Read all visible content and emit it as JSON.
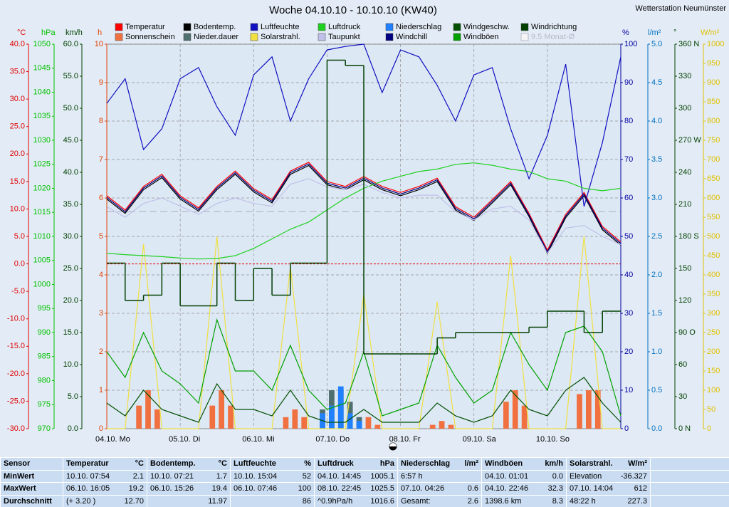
{
  "station": "Wetterstation Neumünster",
  "chart_data": {
    "type": "line",
    "title": "Woche 04.10.10 - 10.10.10 (KW40)",
    "day_labels": [
      "04.10. Mo",
      "05.10. Di",
      "06.10. Mi",
      "07.10. Do",
      "08.10. Fr",
      "09.10. Sa",
      "10.10. So"
    ],
    "axes": [
      {
        "unit": "°C",
        "color": "#e00000",
        "lim": [
          -30,
          40
        ],
        "zero_line": true,
        "ticks": [
          {
            "value": -30,
            "label": "-30.0"
          },
          {
            "value": -25,
            "label": "-25.0"
          },
          {
            "value": -20,
            "label": "-20.0"
          },
          {
            "value": -15,
            "label": "-15.0"
          },
          {
            "value": -10,
            "label": "-10.0"
          },
          {
            "value": -5,
            "label": "-5.0"
          },
          {
            "value": 0,
            "label": "0.0"
          },
          {
            "value": 5,
            "label": "5.0"
          },
          {
            "value": 10,
            "label": "10.0"
          },
          {
            "value": 15,
            "label": "15.0"
          },
          {
            "value": 20,
            "label": "20.0"
          },
          {
            "value": 25,
            "label": "25.0"
          },
          {
            "value": 30,
            "label": "30.0"
          },
          {
            "value": 35,
            "label": "35.0"
          },
          {
            "value": 40,
            "label": "40.0"
          }
        ]
      },
      {
        "unit": "hPa",
        "color": "#00c000",
        "lim": [
          970,
          1050
        ],
        "ticks": [
          970,
          975,
          980,
          985,
          990,
          995,
          1000,
          1005,
          1010,
          1015,
          1020,
          1025,
          1030,
          1035,
          1040,
          1045,
          1050
        ]
      },
      {
        "unit": "km/h",
        "color": "#004000",
        "lim": [
          0,
          60
        ],
        "ticks": [
          {
            "value": 0,
            "label": "0.0"
          },
          {
            "value": 5,
            "label": "5.0"
          },
          {
            "value": 10,
            "label": "10.0"
          },
          {
            "value": 15,
            "label": "15.0"
          },
          {
            "value": 20,
            "label": "20.0"
          },
          {
            "value": 25,
            "label": "25.0"
          },
          {
            "value": 30,
            "label": "30.0"
          },
          {
            "value": 35,
            "label": "35.0"
          },
          {
            "value": 40,
            "label": "40.0"
          },
          {
            "value": 45,
            "label": "45.0"
          },
          {
            "value": 50,
            "label": "50.0"
          },
          {
            "value": 55,
            "label": "55.0"
          },
          {
            "value": 60,
            "label": "60.0"
          }
        ]
      },
      {
        "unit": "h",
        "color": "#e04000",
        "lim": [
          0,
          10
        ],
        "grid": true,
        "ticks": [
          0,
          1,
          2,
          3,
          4,
          5,
          6,
          7,
          8,
          9,
          10
        ]
      },
      {
        "unit": "%",
        "color": "#0000a0",
        "lim": [
          0,
          100
        ],
        "ticks": [
          0,
          10,
          20,
          30,
          40,
          50,
          60,
          70,
          80,
          90,
          100
        ]
      },
      {
        "unit": "l/m²",
        "color": "#0070c0",
        "lim": [
          0,
          5
        ],
        "ticks": [
          {
            "value": 0,
            "label": "0.0"
          },
          0.5,
          {
            "value": 1,
            "label": "1.0"
          },
          1.5,
          {
            "value": 2,
            "label": "2.0"
          },
          2.5,
          {
            "value": 3,
            "label": "3.0"
          },
          3.5,
          {
            "value": 4,
            "label": "4.0"
          },
          4.5,
          {
            "value": 5,
            "label": "5.0"
          }
        ]
      },
      {
        "unit": "°",
        "color": "#004000",
        "lim": [
          0,
          360
        ],
        "ticks": [
          {
            "value": 0,
            "label": "0 N"
          },
          30,
          60,
          {
            "value": 90,
            "label": "90 O"
          },
          120,
          150,
          {
            "value": 180,
            "label": "180 S"
          },
          210,
          240,
          {
            "value": 270,
            "label": "270 W"
          },
          300,
          330,
          {
            "value": 360,
            "label": "360 N"
          }
        ]
      },
      {
        "unit": "W/m²",
        "color": "#e0c000",
        "lim": [
          0,
          1000
        ],
        "ticks": [
          0,
          50,
          100,
          150,
          200,
          250,
          300,
          350,
          400,
          450,
          500,
          550,
          600,
          650,
          700,
          750,
          800,
          850,
          900,
          950,
          1000
        ]
      }
    ],
    "series": [
      {
        "name": "Temperatur",
        "color": "#ff0000",
        "axis": 0,
        "kind": "line",
        "values": [
          12.4,
          9.8,
          14.1,
          16.3,
          12.4,
          10.2,
          14.1,
          16.9,
          13.7,
          11.7,
          16.9,
          18.5,
          15.0,
          14.1,
          15.9,
          14.1,
          13.0,
          14.1,
          15.6,
          10.4,
          8.5,
          11.7,
          15.0,
          9.2,
          2.5,
          9.0,
          13.0,
          6.8,
          4.0
        ]
      },
      {
        "name": "Sonnenschein",
        "color": "#f07040",
        "axis": 3,
        "kind": "bar",
        "values": [
          0,
          0,
          0,
          0.6,
          1.0,
          0.5,
          0,
          0,
          0,
          0,
          0,
          0.6,
          1.0,
          0.6,
          0,
          0,
          0,
          0,
          0,
          0.3,
          0.5,
          0.3,
          0,
          0,
          0,
          0,
          0,
          0.2,
          0.3,
          0.1,
          0,
          0,
          0,
          0,
          0,
          0.1,
          0.2,
          0.1,
          0,
          0,
          0,
          0,
          0,
          0.7,
          1.0,
          0.6,
          0,
          0,
          0,
          0,
          0,
          0.9,
          1.0,
          1.0,
          0,
          0
        ]
      },
      {
        "name": "Bodentemp.",
        "color": "#000000",
        "axis": 0,
        "kind": "line",
        "values": [
          11.8,
          9.2,
          13.5,
          15.7,
          11.8,
          9.6,
          13.5,
          16.3,
          13.1,
          11.1,
          16.3,
          17.9,
          14.4,
          13.5,
          15.3,
          13.5,
          12.4,
          13.5,
          15.0,
          9.8,
          7.9,
          11.1,
          14.4,
          8.6,
          1.9,
          8.4,
          12.4,
          6.2,
          3.4
        ]
      },
      {
        "name": "Nieder.dauer",
        "color": "#507070",
        "axis": 3,
        "kind": "bar",
        "values": [
          0,
          0,
          0,
          0,
          0,
          0,
          0,
          0,
          0,
          0,
          0,
          0,
          0,
          0,
          0,
          0,
          0,
          0,
          0,
          0,
          0,
          0,
          0,
          0.5,
          1.0,
          1.0,
          0.7,
          0.3,
          0,
          0,
          0,
          0,
          0,
          0,
          0,
          0,
          0,
          0,
          0,
          0,
          0,
          0,
          0,
          0,
          0,
          0,
          0,
          0,
          0,
          0,
          0,
          0,
          0,
          0,
          0,
          0
        ]
      },
      {
        "name": "Luftfeuchte",
        "color": "#1010c0",
        "axis": 4,
        "kind": "line",
        "values": [
          84.6,
          91,
          72.6,
          78,
          91,
          93.9,
          83.7,
          76.3,
          92,
          96.7,
          80,
          91,
          98.5,
          99.4,
          100,
          87.4,
          98.5,
          96.7,
          89.3,
          80,
          92,
          93.9,
          78,
          65,
          76.3,
          94.8,
          57.8,
          74.4,
          96.7
        ]
      },
      {
        "name": "Solarstrahl.",
        "color": "#f0e040",
        "axis": 7,
        "kind": "line",
        "values": [
          0,
          0,
          480,
          0,
          0,
          0,
          500,
          0,
          0,
          0,
          420,
          0,
          0,
          0,
          350,
          0,
          0,
          0,
          330,
          0,
          0,
          0,
          450,
          0,
          0,
          0,
          500,
          0,
          0
        ]
      },
      {
        "name": "Luftdruck",
        "color": "#20d020",
        "axis": 1,
        "kind": "line",
        "values": [
          1006.5,
          1006.2,
          1006.0,
          1005.8,
          1005.5,
          1005.3,
          1005.4,
          1006.0,
          1007.5,
          1009.5,
          1011.5,
          1013.0,
          1015.5,
          1018.0,
          1020.0,
          1021.5,
          1022.5,
          1023.5,
          1024.0,
          1025.0,
          1025.3,
          1024.8,
          1024.0,
          1023.5,
          1022.0,
          1021.5,
          1020.0,
          1019.5,
          1020.0
        ]
      },
      {
        "name": "Taupunkt",
        "color": "#c0c0e8",
        "axis": 0,
        "kind": "line",
        "values": [
          10.4,
          8.5,
          11.0,
          12.0,
          10.5,
          9.0,
          11.0,
          12.0,
          11.0,
          10.5,
          14.5,
          15.5,
          14.0,
          13.5,
          14.5,
          13.0,
          12.0,
          12.5,
          12.5,
          9.5,
          8.0,
          10.0,
          10.5,
          8.0,
          2.0,
          6.5,
          7.0,
          5.0,
          3.5
        ]
      },
      {
        "name": "Niederschlag",
        "color": "#2080ff",
        "axis": 5,
        "kind": "bar",
        "values": [
          0,
          0,
          0,
          0,
          0,
          0,
          0,
          0,
          0,
          0,
          0,
          0,
          0,
          0,
          0,
          0,
          0,
          0,
          0,
          0,
          0,
          0,
          0,
          0.2,
          0.3,
          0.55,
          0.2,
          0.1,
          0,
          0,
          0,
          0,
          0,
          0,
          0,
          0,
          0,
          0,
          0,
          0,
          0,
          0,
          0,
          0,
          0,
          0,
          0,
          0,
          0,
          0,
          0,
          0,
          0,
          0,
          0,
          0
        ]
      },
      {
        "name": "Windchill",
        "color": "#000080",
        "axis": 0,
        "kind": "line",
        "values": [
          12.1,
          9.5,
          13.8,
          16.0,
          12.1,
          9.9,
          13.8,
          16.6,
          13.4,
          11.4,
          16.6,
          18.2,
          14.7,
          13.8,
          15.6,
          13.8,
          12.7,
          13.8,
          15.3,
          10.1,
          8.2,
          11.4,
          14.7,
          8.9,
          2.2,
          8.7,
          12.7,
          6.5,
          3.7
        ]
      },
      {
        "name": "Windgeschw.",
        "color": "#005000",
        "axis": 2,
        "kind": "line",
        "values": [
          4,
          2,
          6,
          3,
          2,
          1,
          7,
          3,
          3,
          2,
          6,
          2,
          1,
          1,
          3,
          1,
          1,
          1,
          4,
          2,
          1,
          2,
          6,
          3,
          2,
          6,
          8,
          4,
          1
        ]
      },
      {
        "name": "Windböen",
        "color": "#00a000",
        "axis": 2,
        "kind": "line",
        "values": [
          12,
          8,
          15,
          9,
          7,
          4,
          17,
          9,
          9,
          6,
          13,
          6,
          3,
          4,
          12,
          2,
          3,
          4,
          13,
          8,
          4,
          6,
          15,
          10,
          6,
          15,
          16,
          12,
          2
        ]
      },
      {
        "name": "Windrichtung",
        "color": "#004000",
        "axis": 6,
        "kind": "step",
        "values": [
          155,
          120,
          125,
          155,
          115,
          115,
          155,
          120,
          150,
          125,
          155,
          155,
          345,
          340,
          70,
          70,
          70,
          70,
          85,
          90,
          90,
          90,
          90,
          95,
          110,
          110,
          90,
          110,
          110
        ]
      }
    ],
    "reference": {
      "label": "9.5 Monat-Ø",
      "value": 9.5,
      "color": "#b8b8c8",
      "axis": 0
    }
  },
  "table": {
    "columns": [
      {
        "title": "Sensor"
      },
      {
        "title": "Temperatur",
        "unit": "°C"
      },
      {
        "title": "Bodentemp.",
        "unit": "°C"
      },
      {
        "title": "Luftfeuchte",
        "unit": "%"
      },
      {
        "title": "Luftdruck",
        "unit": "hPa"
      },
      {
        "title": "Niederschlag",
        "unit": "l/m²"
      },
      {
        "title": "Windböen",
        "unit": "km/h"
      },
      {
        "title": "Solarstrahl.",
        "unit": "W/m²"
      }
    ],
    "rows": [
      {
        "label": "MinWert",
        "cells": [
          {
            "l": "10.10. 07:54",
            "r": "2.1"
          },
          {
            "l": "10.10. 07:21",
            "r": "1.7"
          },
          {
            "l": "10.10. 15:04",
            "r": "52"
          },
          {
            "l": "04.10. 14:45",
            "r": "1005.1"
          },
          {
            "l": "6:57 h"
          },
          {
            "l": "04.10. 01:01",
            "r": "0.0"
          },
          {
            "l": "Elevation",
            "r": "-36.327"
          }
        ]
      },
      {
        "label": "MaxWert",
        "cells": [
          {
            "l": "06.10. 16:05",
            "r": "19.2"
          },
          {
            "l": "06.10. 15:26",
            "r": "19.4"
          },
          {
            "l": "06.10. 07:46",
            "r": "100"
          },
          {
            "l": "08.10. 22:45",
            "r": "1025.5"
          },
          {
            "l": "07.10. 04:26",
            "r": "0.6"
          },
          {
            "l": "04.10. 22:46",
            "r": "32.3"
          },
          {
            "l": "07.10. 14:04",
            "r": "612"
          }
        ]
      },
      {
        "label": "Durchschnitt",
        "cells": [
          {
            "l": "(+ 3.20 )",
            "r": "12.70"
          },
          {
            "r": "11.97"
          },
          {
            "r": "86"
          },
          {
            "l": "^0.9hPa/h",
            "r": "1016.6"
          },
          {
            "l": "Gesamt:",
            "r": "2.6"
          },
          {
            "l": "1398.6 km",
            "r": "8.3"
          },
          {
            "l": "48:22 h",
            "r": "227.3"
          }
        ]
      }
    ]
  }
}
